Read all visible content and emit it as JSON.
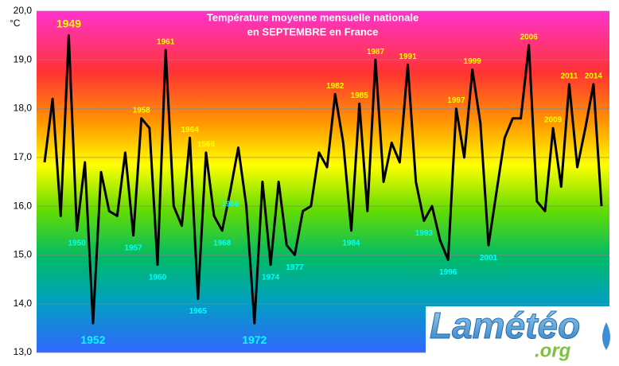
{
  "chart_data": {
    "type": "line",
    "title": "Température moyenne mensuelle nationale",
    "subtitle": "en SEPTEMBRE en France",
    "y_unit": "°C",
    "logo": "Lamétéo",
    "logo_sub": ".org",
    "categories": [
      null,
      null,
      null,
      "1949",
      "1950",
      null,
      "1952",
      null,
      null,
      null,
      null,
      "1957",
      "1958",
      null,
      "1960",
      "1961",
      null,
      null,
      "1964",
      "1965",
      "1966",
      null,
      "1968",
      "1969",
      null,
      null,
      "1972",
      null,
      "1974",
      null,
      null,
      "1977",
      null,
      null,
      null,
      null,
      "1982",
      null,
      "1984",
      "1985",
      null,
      "1987",
      null,
      null,
      null,
      "1991",
      null,
      "1993",
      null,
      null,
      "1996",
      "1997",
      null,
      "1999",
      null,
      "2001",
      null,
      null,
      null,
      null,
      "2006",
      null,
      null,
      "2009",
      null,
      "2011",
      null,
      null,
      "2014",
      null
    ],
    "series": [
      {
        "name": "Septembre",
        "color": "#000000",
        "values": [
          16.9,
          18.2,
          15.8,
          19.5,
          15.5,
          16.9,
          13.6,
          16.7,
          15.9,
          15.8,
          17.1,
          15.4,
          17.8,
          17.6,
          14.8,
          19.2,
          16.0,
          15.6,
          17.4,
          14.1,
          17.1,
          15.8,
          15.5,
          16.3,
          17.2,
          16.0,
          13.6,
          16.5,
          14.8,
          16.5,
          15.2,
          15.0,
          15.9,
          16.0,
          17.1,
          16.8,
          18.3,
          17.3,
          15.5,
          18.1,
          15.9,
          19.0,
          16.5,
          17.3,
          16.9,
          18.9,
          16.5,
          15.7,
          16.0,
          15.3,
          14.9,
          18.0,
          17.0,
          18.8,
          17.7,
          15.2,
          16.3,
          17.4,
          17.8,
          17.8,
          19.3,
          16.1,
          15.9,
          17.6,
          16.4,
          18.5,
          16.8,
          17.6,
          18.5,
          16.0
        ]
      }
    ],
    "ylim": [
      13,
      20
    ],
    "yticks": [
      {
        "value": 13,
        "label": "13,0"
      },
      {
        "value": 14,
        "label": "14,0"
      },
      {
        "value": 15,
        "label": "15,0"
      },
      {
        "value": 16,
        "label": "16,0"
      },
      {
        "value": 17,
        "label": "17,0"
      },
      {
        "value": 18,
        "label": "18,0"
      },
      {
        "value": 19,
        "label": "19,0"
      },
      {
        "value": 20,
        "label": "20,0"
      }
    ],
    "grid": true,
    "hot_label_color": "#ffff00",
    "cold_label_color": "#00ffff"
  }
}
